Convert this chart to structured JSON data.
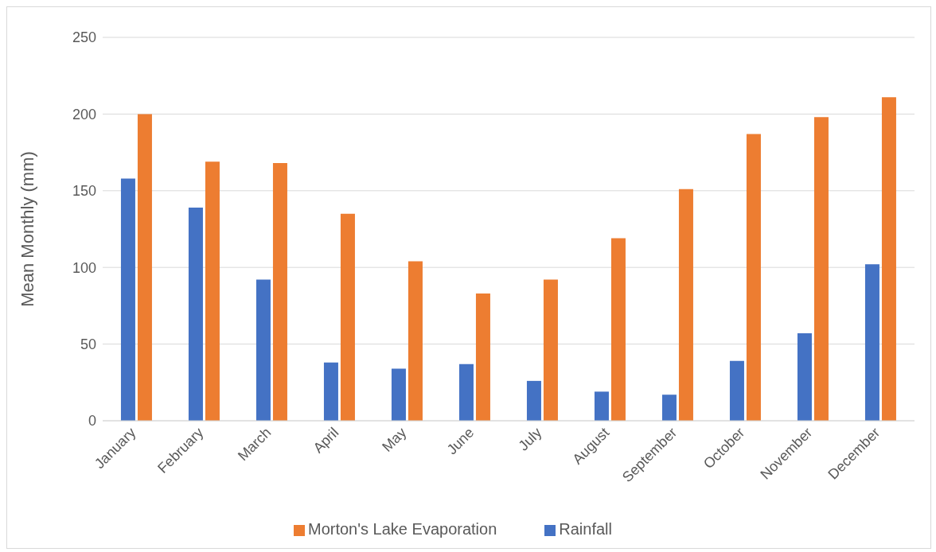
{
  "chart_data": {
    "type": "bar",
    "ylabel": "Mean Monthly (mm)",
    "categories": [
      "January",
      "February",
      "March",
      "April",
      "May",
      "June",
      "July",
      "August",
      "September",
      "October",
      "November",
      "December"
    ],
    "series": [
      {
        "name": "Rainfall",
        "color": "#4472c4",
        "values": [
          158,
          139,
          92,
          38,
          34,
          37,
          26,
          19,
          17,
          39,
          57,
          102
        ]
      },
      {
        "name": "Morton's Lake Evaporation",
        "color": "#ed7d31",
        "values": [
          200,
          169,
          168,
          135,
          104,
          83,
          92,
          119,
          151,
          187,
          198,
          211
        ]
      }
    ],
    "ylim": [
      0,
      250
    ],
    "yticks": [
      0,
      50,
      100,
      150,
      200,
      250
    ],
    "grid": "y",
    "legend": "bottom"
  }
}
